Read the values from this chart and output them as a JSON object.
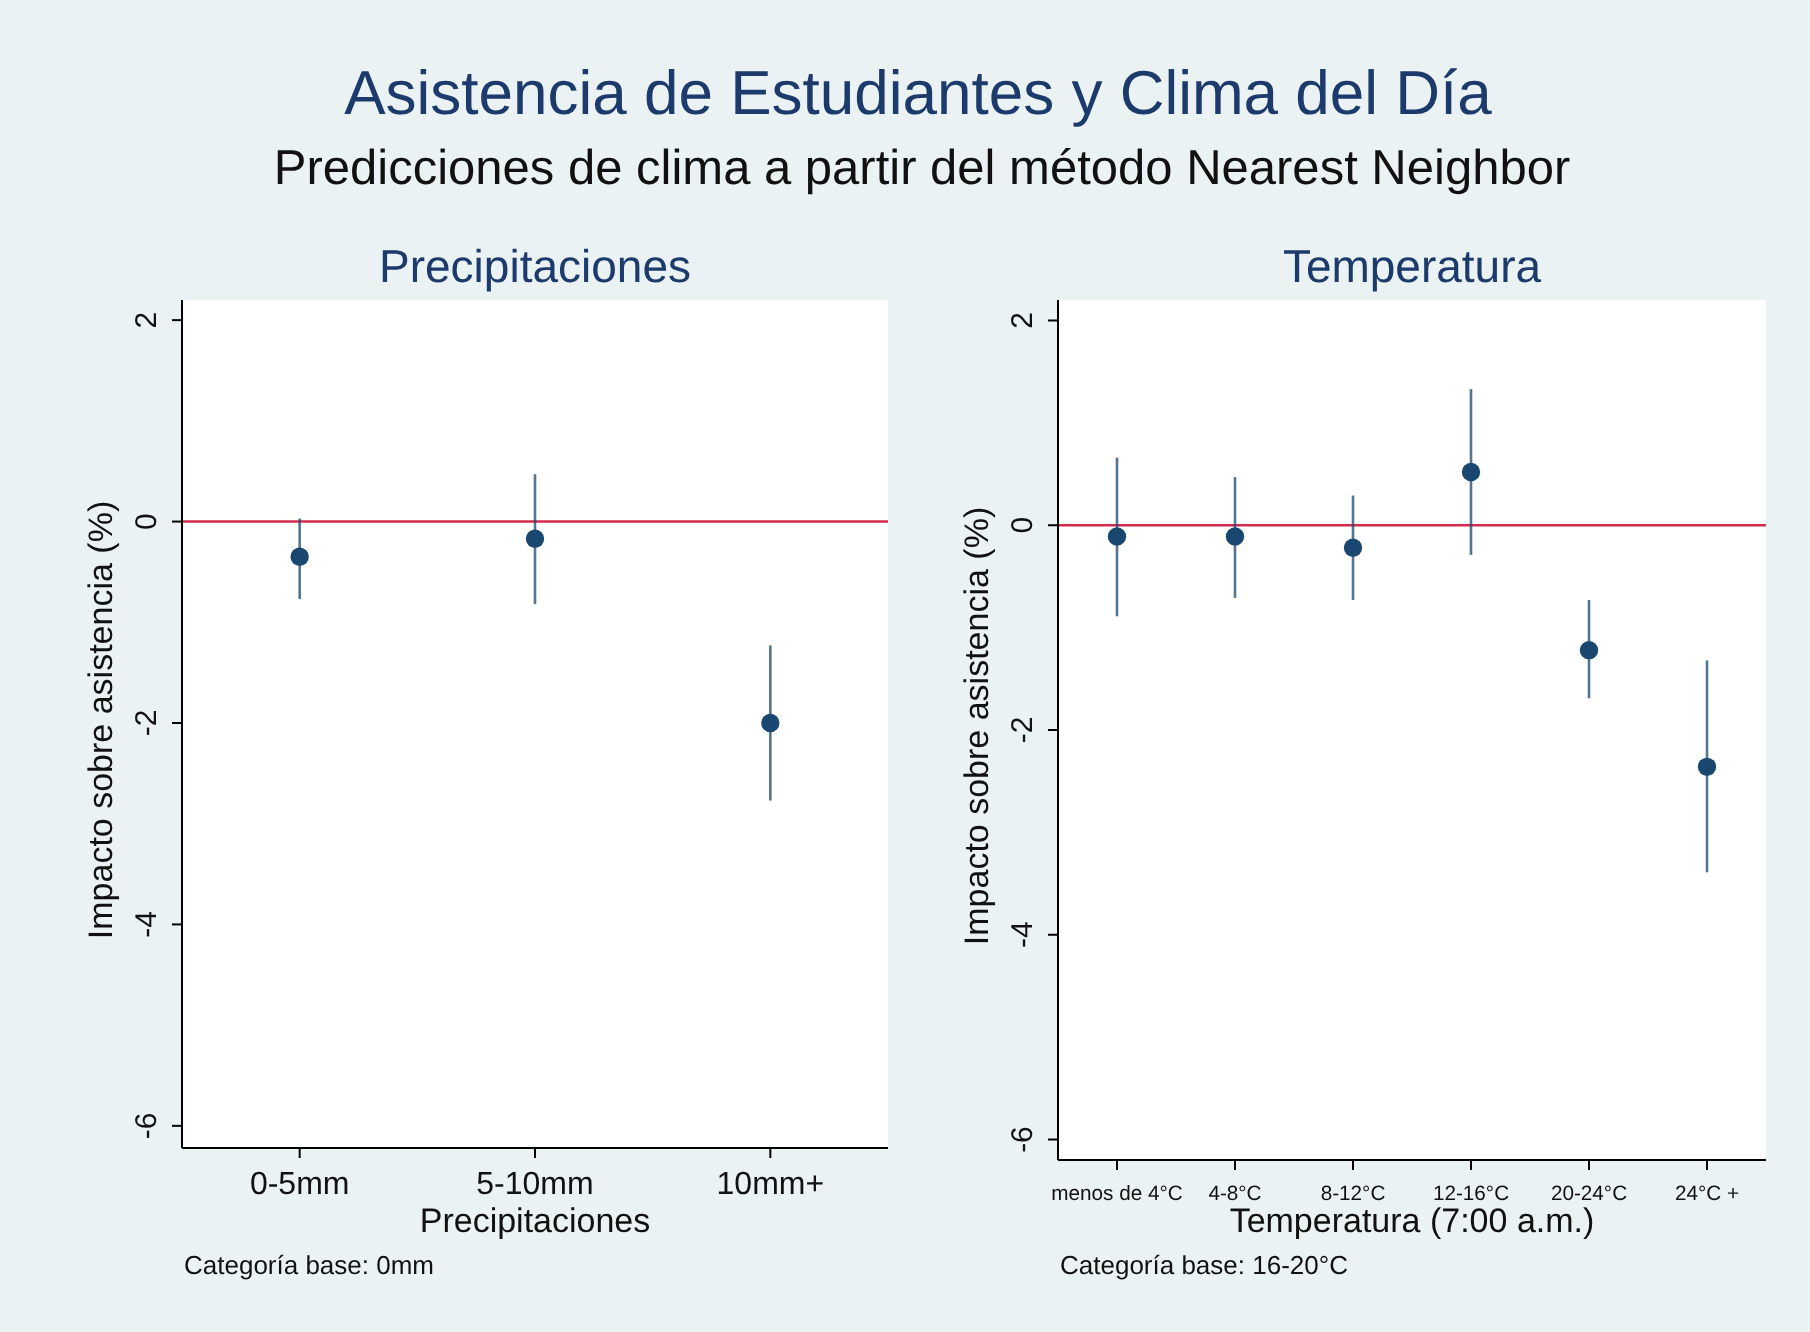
{
  "chart_data": [
    {
      "type": "other",
      "title": "Asistencia de Estudiantes y Clima del Día",
      "subtitle": "Predicciones de clima a partir del método Nearest Neighbor"
    },
    {
      "type": "scatter",
      "title": "Precipitaciones",
      "xlabel": "Precipitaciones",
      "ylabel": "Impacto sobre asistencia (%)",
      "categories": [
        "0-5mm",
        "5-10mm",
        "10mm+"
      ],
      "values": [
        -0.35,
        -0.17,
        -2.0
      ],
      "errors": [
        [
          -0.77,
          0.03
        ],
        [
          -0.82,
          0.47
        ],
        [
          -2.77,
          -1.23
        ]
      ],
      "color": "#1a476f",
      "marker": "circle",
      "ylim": [
        -6.22,
        2.2
      ],
      "yticks": [
        -6,
        -4,
        -2,
        0,
        2
      ],
      "ref_lines": [
        {
          "axis": "y",
          "value": 0,
          "color": "#d42a4e"
        }
      ],
      "annotations": [
        "Categoría base: 0mm"
      ]
    },
    {
      "type": "scatter",
      "title": "Temperatura",
      "xlabel": "Temperatura (7:00 a.m.)",
      "ylabel": "Impacto sobre asistencia (%)",
      "categories": [
        "menos de 4°C",
        "4-8°C",
        "8-12°C",
        "12-16°C",
        "20-24°C",
        "24°C +"
      ],
      "values": [
        -0.11,
        -0.11,
        -0.22,
        0.52,
        -1.22,
        -2.36
      ],
      "errors": [
        [
          -0.89,
          0.66
        ],
        [
          -0.71,
          0.47
        ],
        [
          -0.73,
          0.29
        ],
        [
          -0.29,
          1.33
        ],
        [
          -1.69,
          -0.73
        ],
        [
          -3.39,
          -1.32
        ]
      ],
      "color": "#1a476f",
      "marker": "circle",
      "ylim": [
        -6.2,
        2.2
      ],
      "yticks": [
        -6,
        -4,
        -2,
        0,
        2
      ],
      "ref_lines": [
        {
          "axis": "y",
          "value": 0,
          "color": "#d42a4e"
        }
      ],
      "annotations": [
        "Categoría base: 16-20°C"
      ]
    }
  ]
}
